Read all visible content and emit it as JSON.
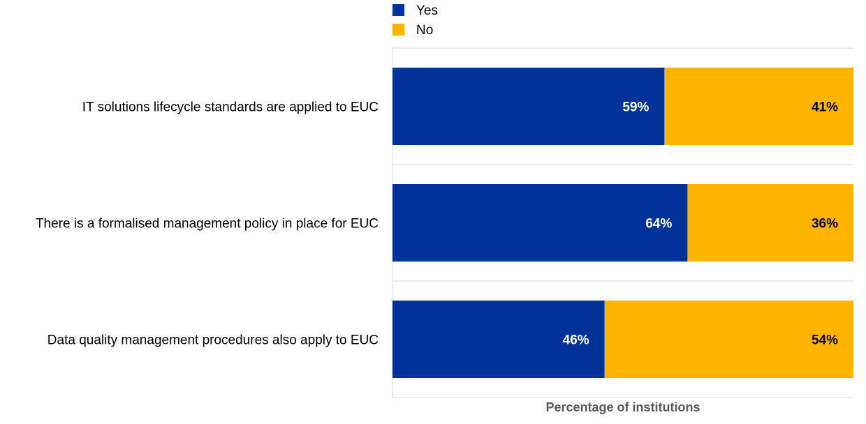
{
  "chart_data": {
    "type": "bar",
    "orientation": "horizontal",
    "stacked": true,
    "categories": [
      "IT solutions lifecycle standards are applied to EUC",
      "There is a formalised management policy in place for EUC",
      "Data quality management procedures also apply to EUC"
    ],
    "series": [
      {
        "name": "Yes",
        "values": [
          59,
          64,
          46
        ],
        "labels": [
          "59%",
          "64%",
          "46%"
        ],
        "color": "#003299"
      },
      {
        "name": "No",
        "values": [
          41,
          36,
          54
        ],
        "labels": [
          "41%",
          "36%",
          "54%"
        ],
        "color": "#FFB400"
      }
    ],
    "xlabel": "Percentage of institutions",
    "ylabel": "",
    "xlim": [
      0,
      100
    ],
    "grid": true,
    "legend": "top",
    "colors": {
      "grid": "#D9D9D9",
      "axis_label": "#595959",
      "category_text": "#000000",
      "yes_label": "#FFFFFF",
      "no_label": "#000000"
    }
  }
}
